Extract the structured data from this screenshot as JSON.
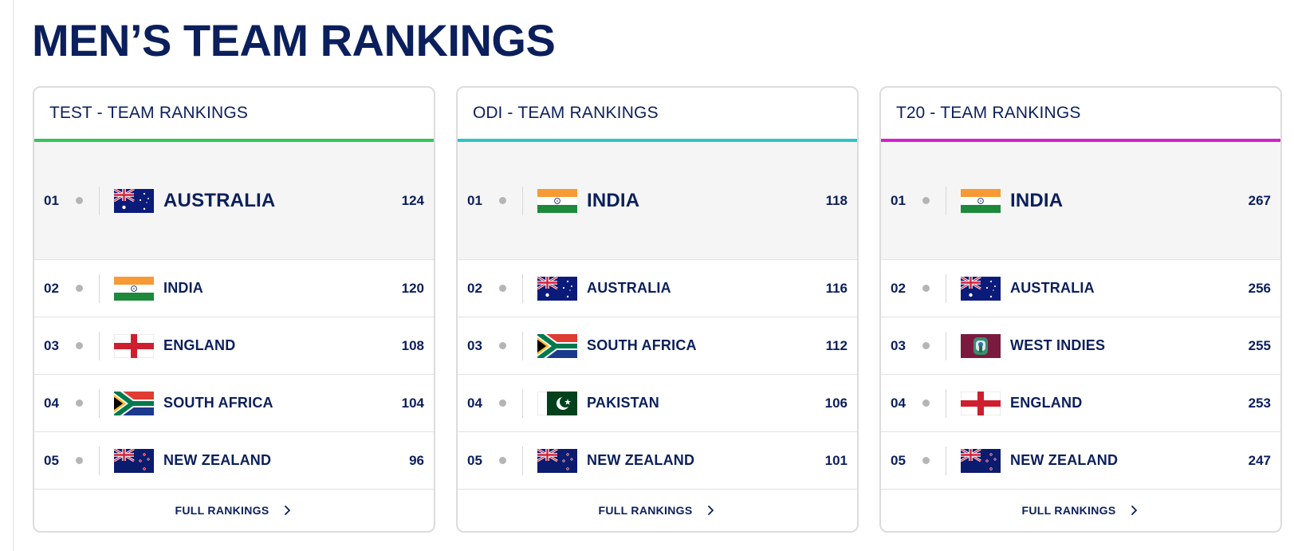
{
  "page": {
    "title": "MEN’S TEAM RANKINGS"
  },
  "cards": [
    {
      "format": "TEST",
      "separator": "-",
      "label": "TEAM RANKINGS",
      "accent": "#35c45b",
      "footer": "FULL RANKINGS",
      "rows": [
        {
          "rank": "01",
          "team": "AUSTRALIA",
          "points": "124",
          "flag": "australia"
        },
        {
          "rank": "02",
          "team": "INDIA",
          "points": "120",
          "flag": "india"
        },
        {
          "rank": "03",
          "team": "ENGLAND",
          "points": "108",
          "flag": "england"
        },
        {
          "rank": "04",
          "team": "SOUTH AFRICA",
          "points": "104",
          "flag": "south-africa"
        },
        {
          "rank": "05",
          "team": "NEW ZEALAND",
          "points": "96",
          "flag": "new-zealand"
        }
      ]
    },
    {
      "format": "ODI",
      "separator": "-",
      "label": "TEAM RANKINGS",
      "accent": "#2ec4c6",
      "footer": "FULL RANKINGS",
      "rows": [
        {
          "rank": "01",
          "team": "INDIA",
          "points": "118",
          "flag": "india"
        },
        {
          "rank": "02",
          "team": "AUSTRALIA",
          "points": "116",
          "flag": "australia"
        },
        {
          "rank": "03",
          "team": "SOUTH AFRICA",
          "points": "112",
          "flag": "south-africa"
        },
        {
          "rank": "04",
          "team": "PAKISTAN",
          "points": "106",
          "flag": "pakistan"
        },
        {
          "rank": "05",
          "team": "NEW ZEALAND",
          "points": "101",
          "flag": "new-zealand"
        }
      ]
    },
    {
      "format": "T20",
      "separator": "-",
      "label": "TEAM RANKINGS",
      "accent": "#d61fcf",
      "footer": "FULL RANKINGS",
      "rows": [
        {
          "rank": "01",
          "team": "INDIA",
          "points": "267",
          "flag": "india"
        },
        {
          "rank": "02",
          "team": "AUSTRALIA",
          "points": "256",
          "flag": "australia"
        },
        {
          "rank": "03",
          "team": "WEST INDIES",
          "points": "255",
          "flag": "west-indies"
        },
        {
          "rank": "04",
          "team": "ENGLAND",
          "points": "253",
          "flag": "england"
        },
        {
          "rank": "05",
          "team": "NEW ZEALAND",
          "points": "247",
          "flag": "new-zealand"
        }
      ]
    }
  ]
}
